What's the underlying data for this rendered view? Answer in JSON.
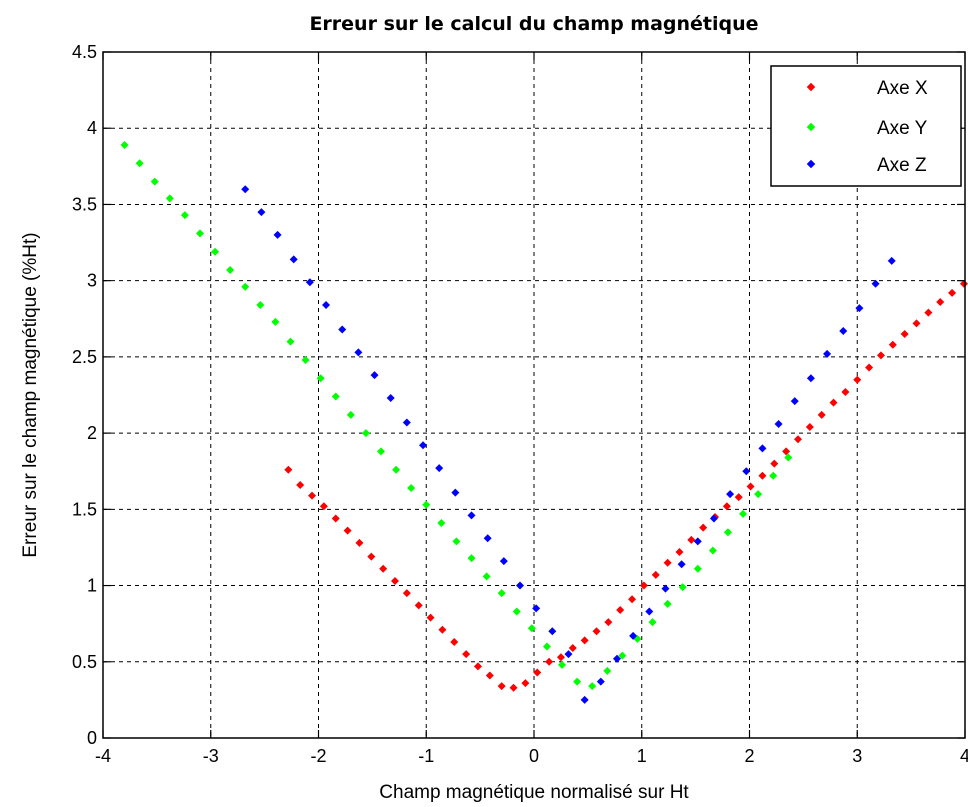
{
  "chart_data": {
    "type": "scatter",
    "title": "Erreur sur le calcul du champ magnétique",
    "xlabel": "Champ magnétique normalisé sur Ht",
    "ylabel": "Erreur sur le champ magnétique (%Ht)",
    "xlim": [
      -4,
      4
    ],
    "ylim": [
      0,
      4.5
    ],
    "xticks": [
      -4,
      -3,
      -2,
      -1,
      0,
      1,
      2,
      3,
      4
    ],
    "yticks": [
      0,
      0.5,
      1,
      1.5,
      2,
      2.5,
      3,
      3.5,
      4,
      4.5
    ],
    "xtick_labels": [
      "-4",
      "-3",
      "-2",
      "-1",
      "0",
      "1",
      "2",
      "3",
      "4"
    ],
    "ytick_labels": [
      "0",
      "0.5",
      "1",
      "1.5",
      "2",
      "2.5",
      "3",
      "3.5",
      "4",
      "4.5"
    ],
    "grid": true,
    "legend_position": "top-right",
    "series": [
      {
        "name": "Axe X",
        "color": "#ff0000",
        "x": [
          -2.28,
          -2.17,
          -2.06,
          -1.95,
          -1.84,
          -1.73,
          -1.62,
          -1.51,
          -1.4,
          -1.29,
          -1.18,
          -1.07,
          -0.96,
          -0.85,
          -0.74,
          -0.63,
          -0.52,
          -0.41,
          -0.3,
          -0.19,
          -0.08,
          0.03,
          0.14,
          0.25,
          0.36,
          0.47,
          0.58,
          0.69,
          0.8,
          0.91,
          1.02,
          1.13,
          1.24,
          1.35,
          1.46,
          1.57,
          1.68,
          1.79,
          1.9,
          2.01,
          2.12,
          2.23,
          2.34,
          2.45,
          2.56,
          2.67,
          2.78,
          2.89,
          3.0,
          3.11,
          3.22,
          3.33,
          3.44,
          3.55,
          3.66,
          3.77,
          3.88,
          3.99
        ],
        "y": [
          1.76,
          1.66,
          1.59,
          1.52,
          1.44,
          1.36,
          1.28,
          1.19,
          1.11,
          1.03,
          0.95,
          0.87,
          0.79,
          0.71,
          0.63,
          0.55,
          0.47,
          0.41,
          0.34,
          0.33,
          0.36,
          0.43,
          0.5,
          0.53,
          0.59,
          0.64,
          0.7,
          0.76,
          0.84,
          0.91,
          1.0,
          1.07,
          1.15,
          1.22,
          1.3,
          1.38,
          1.45,
          1.52,
          1.58,
          1.65,
          1.72,
          1.8,
          1.88,
          1.96,
          2.04,
          2.12,
          2.2,
          2.27,
          2.35,
          2.43,
          2.51,
          2.58,
          2.65,
          2.72,
          2.79,
          2.86,
          2.92,
          2.98
        ]
      },
      {
        "name": "Axe Y",
        "color": "#00ff00",
        "x": [
          -3.8,
          -3.66,
          -3.52,
          -3.38,
          -3.24,
          -3.1,
          -2.96,
          -2.82,
          -2.68,
          -2.54,
          -2.4,
          -2.26,
          -2.12,
          -1.98,
          -1.84,
          -1.7,
          -1.56,
          -1.42,
          -1.28,
          -1.14,
          -1.0,
          -0.86,
          -0.72,
          -0.58,
          -0.44,
          -0.3,
          -0.16,
          -0.02,
          0.12,
          0.26,
          0.4,
          0.54,
          0.68,
          0.82,
          0.96,
          1.1,
          1.24,
          1.38,
          1.52,
          1.66,
          1.8,
          1.94,
          2.08,
          2.22,
          2.36
        ],
        "y": [
          3.89,
          3.77,
          3.65,
          3.54,
          3.43,
          3.31,
          3.19,
          3.07,
          2.96,
          2.84,
          2.73,
          2.6,
          2.48,
          2.36,
          2.24,
          2.12,
          2.0,
          1.88,
          1.76,
          1.64,
          1.53,
          1.41,
          1.29,
          1.18,
          1.06,
          0.95,
          0.83,
          0.72,
          0.6,
          0.48,
          0.37,
          0.34,
          0.44,
          0.54,
          0.65,
          0.76,
          0.88,
          0.99,
          1.11,
          1.23,
          1.35,
          1.47,
          1.6,
          1.72,
          1.84
        ]
      },
      {
        "name": "Axe Z",
        "color": "#0000ff",
        "x": [
          -2.68,
          -2.53,
          -2.38,
          -2.23,
          -2.08,
          -1.93,
          -1.78,
          -1.63,
          -1.48,
          -1.33,
          -1.18,
          -1.03,
          -0.88,
          -0.73,
          -0.58,
          -0.43,
          -0.28,
          -0.13,
          0.02,
          0.17,
          0.32,
          0.47,
          0.62,
          0.77,
          0.92,
          1.07,
          1.22,
          1.37,
          1.52,
          1.67,
          1.82,
          1.97,
          2.12,
          2.27,
          2.42,
          2.57,
          2.72,
          2.87,
          3.02,
          3.17,
          3.32
        ],
        "y": [
          3.6,
          3.45,
          3.3,
          3.14,
          2.99,
          2.84,
          2.68,
          2.53,
          2.38,
          2.23,
          2.07,
          1.92,
          1.77,
          1.61,
          1.46,
          1.31,
          1.16,
          1.0,
          0.85,
          0.7,
          0.55,
          0.25,
          0.37,
          0.52,
          0.67,
          0.83,
          0.98,
          1.14,
          1.29,
          1.44,
          1.6,
          1.75,
          1.9,
          2.06,
          2.21,
          2.36,
          2.52,
          2.67,
          2.82,
          2.98,
          3.13
        ]
      }
    ]
  },
  "legend": {
    "items": [
      {
        "label": "Axe X",
        "color": "#ff0000"
      },
      {
        "label": "Axe Y",
        "color": "#00ff00"
      },
      {
        "label": "Axe Z",
        "color": "#0000ff"
      }
    ]
  }
}
